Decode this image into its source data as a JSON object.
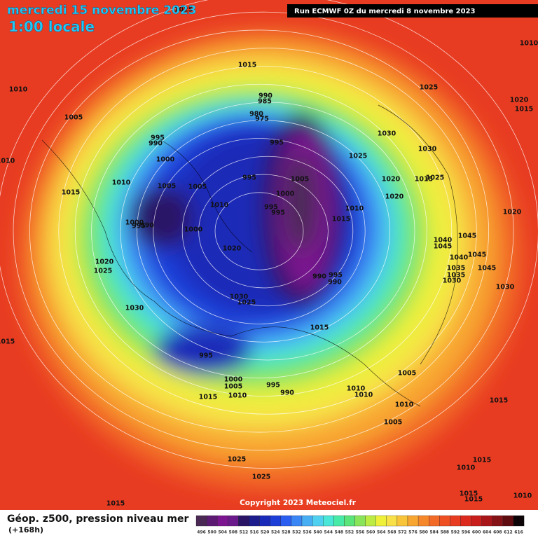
{
  "header": {
    "date": "mercredi 15 novembre 2023",
    "time": "1:00 locale",
    "run": "Run ECMWF 0Z du mercredi 8 novembre 2023"
  },
  "map": {
    "copyright": "Copyright 2023 Meteociel.fr",
    "isobar_labels": [
      1025,
      1015,
      1010,
      1005,
      995,
      990,
      1000,
      1010,
      1015,
      1005,
      1005,
      995,
      990,
      985,
      980,
      975,
      995,
      1000,
      1005,
      995,
      995,
      1010,
      1000,
      995,
      990,
      1000,
      1020,
      1015,
      1010,
      1025,
      1030,
      1025,
      1030,
      1020,
      1020,
      1015,
      1025,
      1020,
      1015,
      1010,
      1020,
      1040,
      1045,
      1045,
      1045,
      1045,
      1040,
      1035,
      1035,
      1030,
      1030,
      990,
      995,
      990,
      1020,
      1025,
      1030,
      1030,
      1025,
      1015,
      995,
      1000,
      1005,
      1010,
      995,
      990,
      1015,
      1010,
      1010,
      1005,
      1010,
      1005,
      1015,
      1025,
      1025,
      1015,
      1010,
      1015,
      1015,
      1015,
      1010,
      1010,
      1015
    ]
  },
  "legend": {
    "title": "Géop. z500, pression niveau mer",
    "lead_time": "(+168h)",
    "scale": [
      496,
      500,
      504,
      508,
      512,
      516,
      520,
      524,
      528,
      532,
      536,
      540,
      544,
      548,
      552,
      556,
      560,
      564,
      568,
      572,
      576,
      580,
      584,
      588,
      592,
      596,
      600,
      604,
      608,
      612,
      616
    ],
    "colors": [
      "#4a2a55",
      "#5c1a72",
      "#7c1690",
      "#6a1a8a",
      "#2a1466",
      "#1c1c8c",
      "#1a2ab8",
      "#1e3ed8",
      "#2a5ef0",
      "#3a86f4",
      "#48aef4",
      "#50d0f0",
      "#4ae6d8",
      "#48eaa8",
      "#5ae47a",
      "#8ae45a",
      "#bcec44",
      "#eef03a",
      "#f8e048",
      "#f8c43a",
      "#f8a632",
      "#f6882c",
      "#f26a28",
      "#ee5024",
      "#e83c22",
      "#dc2a1e",
      "#c81e1c",
      "#a8161a",
      "#841216",
      "#5e0c10",
      "#0c0406"
    ]
  }
}
